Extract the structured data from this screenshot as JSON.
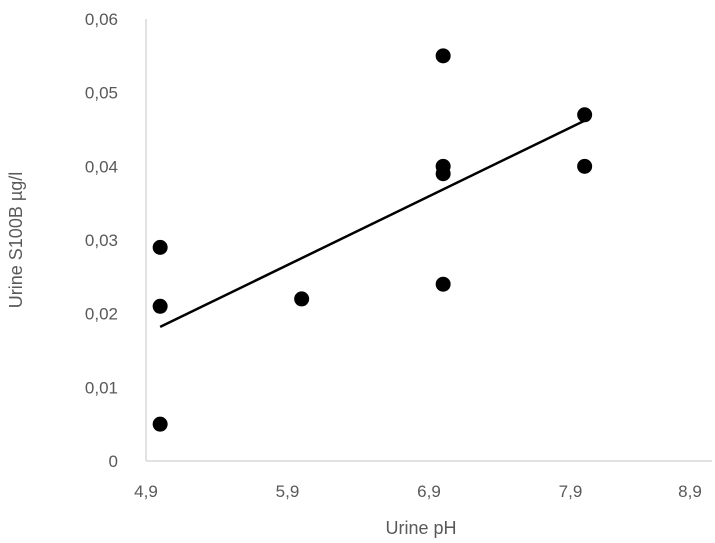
{
  "chart_data": {
    "type": "scatter",
    "title": "",
    "xlabel": "Urine pH",
    "ylabel": "Urine S100B µg/l",
    "xlim": [
      4.9,
      8.9
    ],
    "ylim": [
      0,
      0.06
    ],
    "x_ticks": [
      4.9,
      5.9,
      6.9,
      7.9,
      8.9
    ],
    "x_tick_labels": [
      "4,9",
      "5,9",
      "6,9",
      "7,9",
      "8,9"
    ],
    "y_ticks": [
      0,
      0.01,
      0.02,
      0.03,
      0.04,
      0.05,
      0.06
    ],
    "y_tick_labels": [
      "0",
      "0,01",
      "0,02",
      "0,03",
      "0,04",
      "0,05",
      "0,06"
    ],
    "grid": false,
    "legend": "none",
    "marker_color": "#000000",
    "series": [
      {
        "points": [
          {
            "x": 5.0,
            "y": 0.029
          },
          {
            "x": 5.0,
            "y": 0.021
          },
          {
            "x": 5.0,
            "y": 0.005
          },
          {
            "x": 6.0,
            "y": 0.022
          },
          {
            "x": 7.0,
            "y": 0.055
          },
          {
            "x": 7.0,
            "y": 0.04
          },
          {
            "x": 7.0,
            "y": 0.039
          },
          {
            "x": 7.0,
            "y": 0.024
          },
          {
            "x": 8.0,
            "y": 0.047
          },
          {
            "x": 8.0,
            "y": 0.04
          }
        ]
      }
    ],
    "trendline": {
      "type": "linear",
      "from": {
        "x": 5.0,
        "y": 0.0182
      },
      "to": {
        "x": 8.0,
        "y": 0.0462
      }
    }
  }
}
